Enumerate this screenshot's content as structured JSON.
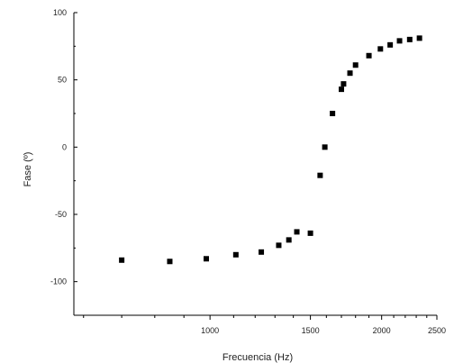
{
  "chart_data": {
    "type": "scatter",
    "xlabel": "Frecuencia (Hz)",
    "ylabel": "Fase (º)",
    "xscale": "log",
    "xlim": [
      577,
      2500
    ],
    "ylim": [
      -125,
      100
    ],
    "x_major_ticks": [
      1000,
      1500,
      2000,
      2500
    ],
    "x_minor_ticks": [
      600,
      700,
      800,
      900,
      1100,
      1200,
      1300,
      1400,
      1600,
      1700,
      1800,
      1900,
      2100,
      2200,
      2300,
      2400
    ],
    "y_ticks": [
      100,
      50,
      0,
      -50,
      -100
    ],
    "grid": false,
    "legend": "none",
    "marker": "square",
    "color": "#000000",
    "series": [
      {
        "x": [
          700,
          850,
          985,
          1110,
          1230,
          1320,
          1375,
          1420,
          1500,
          1560,
          1590,
          1640,
          1700,
          1715,
          1760,
          1800,
          1900,
          1990,
          2070,
          2150,
          2240,
          2330
        ],
        "y": [
          -84,
          -85,
          -83,
          -80,
          -78,
          -73,
          -69,
          -63,
          -64,
          -21,
          0,
          25,
          43,
          47,
          55,
          61,
          68,
          73,
          76,
          79,
          80,
          81
        ]
      }
    ]
  }
}
